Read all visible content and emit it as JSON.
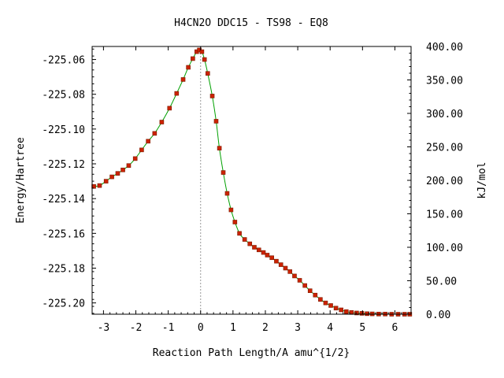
{
  "chart_data": {
    "type": "line",
    "title": "H4CN2O   DDC15 - TS98 - EQ8",
    "xlabel": "Reaction Path Length/A amu^{1/2}",
    "ylabel": "Energy/Hartree",
    "y2label": "kJ/mol",
    "xlim": [
      -3.35,
      6.5
    ],
    "ylim": [
      -225.2065,
      -225.0525
    ],
    "y2lim": [
      0,
      400
    ],
    "x_ticks": [
      -3,
      -2,
      -1,
      0,
      1,
      2,
      3,
      4,
      5,
      6
    ],
    "x_tick_labels": [
      "-3",
      "-2",
      "-1",
      "0",
      "1",
      "2",
      "3",
      "4",
      "5",
      "6"
    ],
    "y_ticks": [
      -225.06,
      -225.08,
      -225.1,
      -225.12,
      -225.14,
      -225.16,
      -225.18,
      -225.2
    ],
    "y_tick_labels": [
      "-225.06",
      "-225.08",
      "-225.10",
      "-225.12",
      "-225.14",
      "-225.16",
      "-225.18",
      "-225.20"
    ],
    "y2_ticks": [
      400,
      350,
      300,
      250,
      200,
      150,
      100,
      50,
      0
    ],
    "y2_tick_labels": [
      "400.00",
      "350.00",
      "300.00",
      "250.00",
      "200.00",
      "150.00",
      "100.00",
      "50.00",
      "0.00"
    ],
    "ts_marker_x": 0,
    "grid": false,
    "line_color": "#00a000",
    "marker_color": "#cc2200",
    "ts_line_color": "#999999",
    "series": [
      {
        "x": [
          -3.3,
          -3.12,
          -2.92,
          -2.74,
          -2.56,
          -2.4,
          -2.22,
          -2.02,
          -1.82,
          -1.62,
          -1.42,
          -1.2,
          -0.96,
          -0.74,
          -0.54,
          -0.38,
          -0.24,
          -0.12,
          -0.04,
          0.04,
          0.12,
          0.22,
          0.36,
          0.48,
          0.58,
          0.7,
          0.82,
          0.94,
          1.06,
          1.2,
          1.36,
          1.52,
          1.66,
          1.8,
          1.94,
          2.06,
          2.2,
          2.34,
          2.48,
          2.62,
          2.76,
          2.9,
          3.06,
          3.22,
          3.38,
          3.54,
          3.7,
          3.86,
          4.02,
          4.18,
          4.34,
          4.5,
          4.66,
          4.82,
          4.98,
          5.14,
          5.3,
          5.5,
          5.7,
          5.9,
          6.1,
          6.3,
          6.46
        ],
        "y": [
          -225.133,
          -225.1325,
          -225.13,
          -225.1275,
          -225.1255,
          -225.1235,
          -225.121,
          -225.117,
          -225.112,
          -225.107,
          -225.1025,
          -225.096,
          -225.088,
          -225.0795,
          -225.0715,
          -225.0645,
          -225.0595,
          -225.0555,
          -225.0545,
          -225.0555,
          -225.06,
          -225.068,
          -225.081,
          -225.0955,
          -225.111,
          -225.125,
          -225.137,
          -225.1465,
          -225.1535,
          -225.16,
          -225.1635,
          -225.166,
          -225.168,
          -225.1695,
          -225.171,
          -225.1725,
          -225.174,
          -225.176,
          -225.178,
          -225.18,
          -225.182,
          -225.1845,
          -225.187,
          -225.19,
          -225.193,
          -225.1955,
          -225.198,
          -225.2,
          -225.2015,
          -225.203,
          -225.204,
          -225.205,
          -225.2055,
          -225.2058,
          -225.206,
          -225.2062,
          -225.2063,
          -225.2064,
          -225.2064,
          -225.2065,
          -225.2065,
          -225.2065,
          -225.2065
        ]
      }
    ]
  }
}
